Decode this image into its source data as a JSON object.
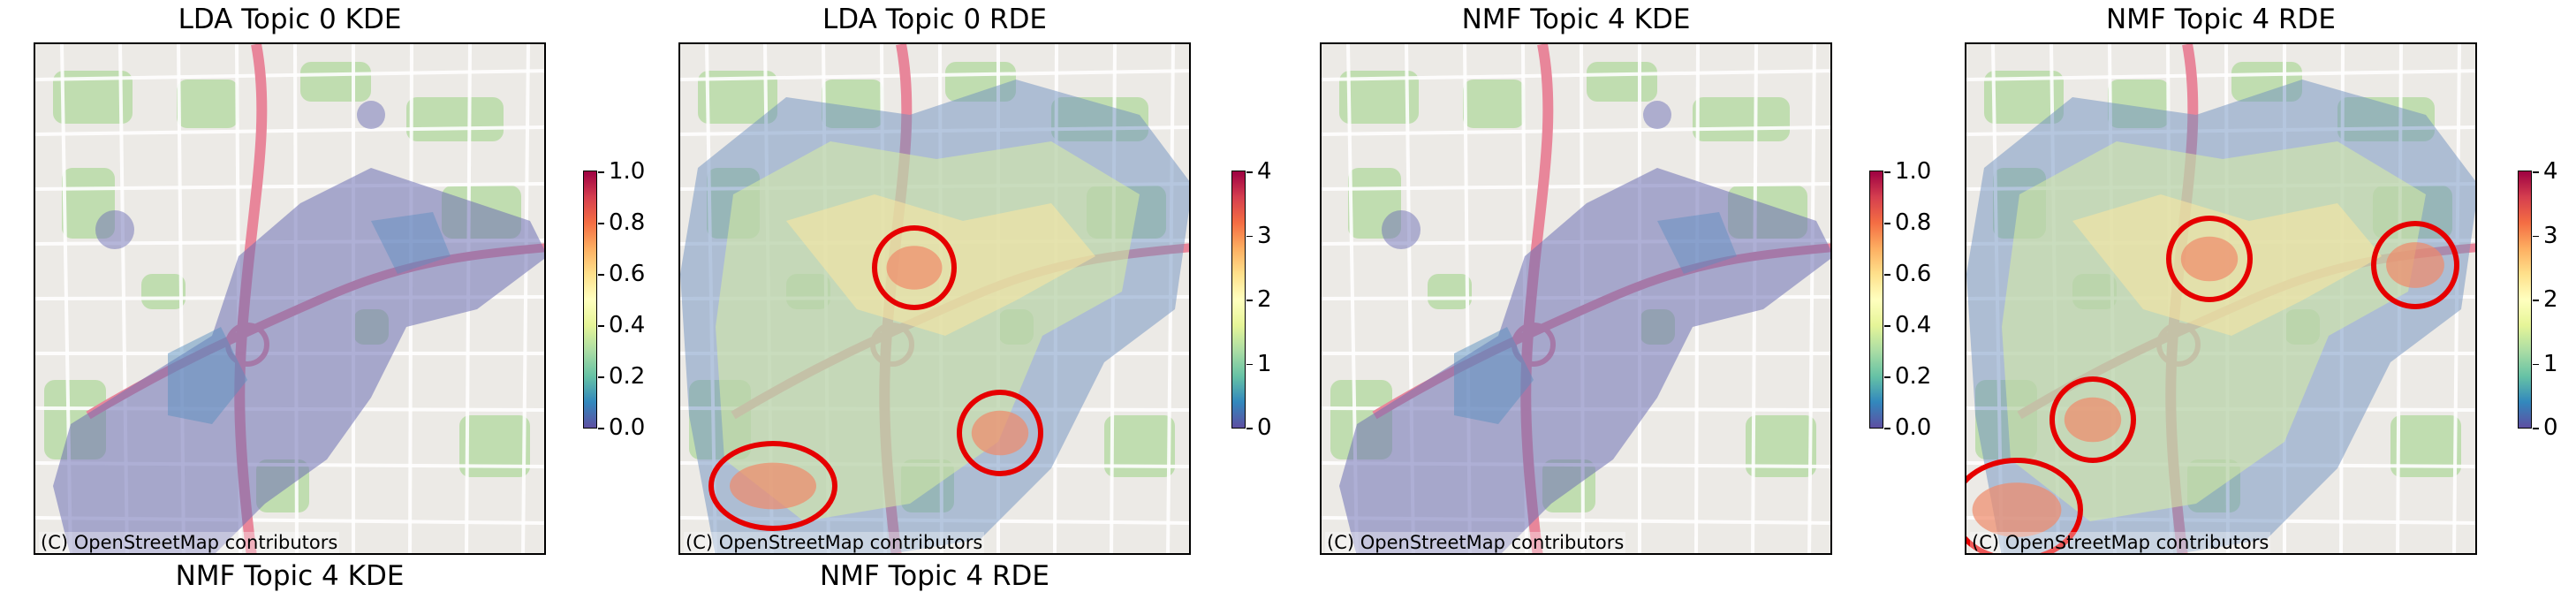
{
  "panels": [
    {
      "title": "LDA Topic 0 KDE",
      "attribution": "(C) OpenStreetMap contributors",
      "next_title": "NMF Topic 4 KDE",
      "overlay": "kde",
      "colorbar": {
        "ticks": [
          "0.0",
          "0.2",
          "0.4",
          "0.6",
          "0.8",
          "1.0"
        ]
      }
    },
    {
      "title": "LDA Topic 0 RDE",
      "attribution": "(C) OpenStreetMap contributors",
      "next_title": "NMF Topic 4 RDE",
      "overlay": "rde",
      "colorbar": {
        "ticks": [
          "0",
          "1",
          "2",
          "3",
          "4"
        ]
      }
    },
    {
      "title": "NMF Topic 4 KDE",
      "attribution": "(C) OpenStreetMap contributors",
      "next_title": "",
      "overlay": "kde",
      "colorbar": {
        "ticks": [
          "0.0",
          "0.2",
          "0.4",
          "0.6",
          "0.8",
          "1.0"
        ]
      }
    },
    {
      "title": "NMF Topic 4 RDE",
      "attribution": "(C) OpenStreetMap contributors",
      "next_title": "",
      "overlay": "rde",
      "colorbar": {
        "ticks": [
          "0",
          "1",
          "2",
          "3",
          "4"
        ]
      }
    }
  ],
  "chart_data": {
    "type": "heatmap",
    "colormap": "Spectral_r",
    "colors": {
      "highlight_circle": "#e60000"
    },
    "series": [
      {
        "name": "LDA Topic 0 KDE",
        "range": [
          0.0,
          1.0
        ]
      },
      {
        "name": "LDA Topic 0 RDE",
        "range": [
          0,
          4
        ]
      },
      {
        "name": "NMF Topic 4 KDE",
        "range": [
          0.0,
          1.0
        ]
      },
      {
        "name": "NMF Topic 4 RDE",
        "range": [
          0,
          4
        ]
      }
    ]
  }
}
